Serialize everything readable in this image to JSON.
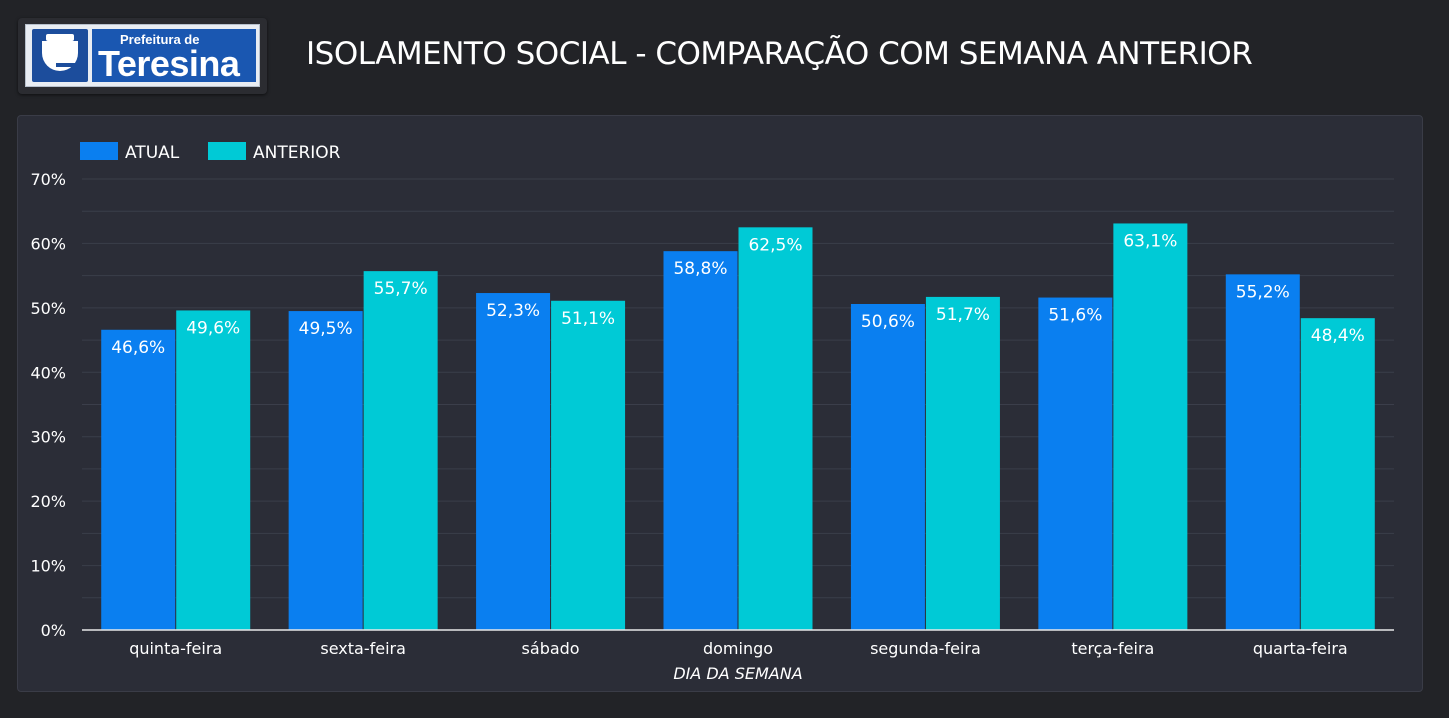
{
  "header": {
    "logo_small": "Prefeitura de",
    "logo_big": "Teresina",
    "title": "ISOLAMENTO SOCIAL - COMPARAÇÃO COM SEMANA ANTERIOR"
  },
  "colors": {
    "atual": "#0a7ff0",
    "anterior": "#00cad6"
  },
  "chart_data": {
    "type": "bar",
    "title": "ISOLAMENTO SOCIAL - COMPARAÇÃO COM SEMANA ANTERIOR",
    "xlabel": "DIA DA SEMANA",
    "ylabel": "",
    "ylim": [
      0,
      70
    ],
    "yticks": [
      "0%",
      "10%",
      "20%",
      "30%",
      "40%",
      "50%",
      "60%",
      "70%"
    ],
    "legend_position": "top-left",
    "grid": true,
    "categories": [
      "quinta-feira",
      "sexta-feira",
      "sábado",
      "domingo",
      "segunda-feira",
      "terça-feira",
      "quarta-feira"
    ],
    "series": [
      {
        "name": "ATUAL",
        "color": "#0a7ff0",
        "values": [
          46.6,
          49.5,
          52.3,
          58.8,
          50.6,
          51.6,
          55.2
        ],
        "labels": [
          "46,6%",
          "49,5%",
          "52,3%",
          "58,8%",
          "50,6%",
          "51,6%",
          "55,2%"
        ]
      },
      {
        "name": "ANTERIOR",
        "color": "#00cad6",
        "values": [
          49.6,
          55.7,
          51.1,
          62.5,
          51.7,
          63.1,
          48.4
        ],
        "labels": [
          "49,6%",
          "55,7%",
          "51,1%",
          "62,5%",
          "51,7%",
          "63,1%",
          "48,4%"
        ]
      }
    ]
  }
}
